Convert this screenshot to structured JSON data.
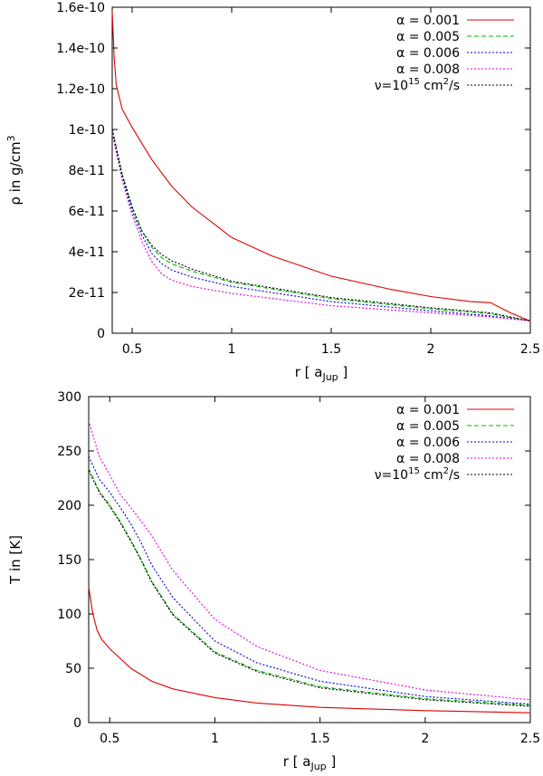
{
  "chart_data": [
    {
      "type": "line",
      "xlabel": "r [ a",
      "xlabel_sub": "Jup",
      "xlabel_tail": " ]",
      "ylabel": "ρ in g/cm",
      "ylabel_sup": "3",
      "xlim": [
        0.4,
        2.5
      ],
      "ylim": [
        0,
        1.6e-10
      ],
      "xticks": [
        0.5,
        1,
        1.5,
        2,
        2.5
      ],
      "xtick_labels": [
        "0.5",
        "1",
        "1.5",
        "2",
        "2.5"
      ],
      "yticks": [
        0,
        2e-11,
        4e-11,
        6e-11,
        8e-11,
        1e-10,
        1.2e-10,
        1.4e-10,
        1.6e-10
      ],
      "ytick_labels": [
        "0",
        "2e-11",
        "4e-11",
        "6e-11",
        "8e-11",
        "1e-10",
        "1.2e-10",
        "1.4e-10",
        "1.6e-10"
      ],
      "legend_position": "top-right",
      "series": [
        {
          "name": "α = 0.001",
          "color": "#e00000",
          "dash": "solid",
          "x": [
            0.4,
            0.41,
            0.42,
            0.45,
            0.5,
            0.6,
            0.7,
            0.8,
            1.0,
            1.2,
            1.5,
            1.8,
            2.0,
            2.2,
            2.3,
            2.4,
            2.5
          ],
          "y": [
            1.58e-10,
            1.35e-10,
            1.22e-10,
            1.1e-10,
            1.01e-10,
            8.5e-11,
            7.2e-11,
            6.2e-11,
            4.7e-11,
            3.8e-11,
            2.8e-11,
            2.15e-11,
            1.8e-11,
            1.55e-11,
            1.5e-11,
            1e-11,
            6e-12
          ]
        },
        {
          "name": "α = 0.005",
          "color": "#00b800",
          "dash": "dash",
          "x": [
            0.4,
            0.45,
            0.5,
            0.55,
            0.6,
            0.65,
            0.7,
            0.8,
            1.0,
            1.5,
            2.0,
            2.3,
            2.5
          ],
          "y": [
            1e-10,
            7.8e-11,
            6.2e-11,
            5e-11,
            4.2e-11,
            3.7e-11,
            3.4e-11,
            3.05e-11,
            2.5e-11,
            1.7e-11,
            1.2e-11,
            9.5e-12,
            6e-12
          ]
        },
        {
          "name": "α = 0.006",
          "color": "#0000cc",
          "dash": "dot",
          "x": [
            0.4,
            0.45,
            0.5,
            0.55,
            0.6,
            0.65,
            0.7,
            0.8,
            1.0,
            1.5,
            2.0,
            2.3,
            2.5
          ],
          "y": [
            1e-10,
            7.7e-11,
            6e-11,
            4.8e-11,
            3.9e-11,
            3.4e-11,
            3.1e-11,
            2.75e-11,
            2.3e-11,
            1.55e-11,
            1.1e-11,
            8.5e-12,
            6e-12
          ]
        },
        {
          "name": "α = 0.008",
          "color": "#e000e0",
          "dash": "dot",
          "x": [
            0.4,
            0.45,
            0.5,
            0.55,
            0.6,
            0.65,
            0.7,
            0.8,
            1.0,
            1.5,
            2.0,
            2.3,
            2.5
          ],
          "y": [
            9.8e-11,
            7.5e-11,
            5.8e-11,
            4.5e-11,
            3.5e-11,
            2.9e-11,
            2.6e-11,
            2.3e-11,
            1.95e-11,
            1.35e-11,
            1e-11,
            8e-12,
            6e-12
          ]
        },
        {
          "name": "ν=10",
          "name_sup": "15",
          "name_tail": " cm",
          "name_sup2": "2",
          "name_tail2": "/s",
          "color": "#000000",
          "dash": "dot",
          "x": [
            0.4,
            0.45,
            0.5,
            0.55,
            0.6,
            0.65,
            0.7,
            0.8,
            1.0,
            1.5,
            2.0,
            2.3,
            2.5
          ],
          "y": [
            1e-10,
            7.8e-11,
            6.2e-11,
            5e-11,
            4.3e-11,
            3.85e-11,
            3.55e-11,
            3.15e-11,
            2.55e-11,
            1.75e-11,
            1.25e-11,
            1e-11,
            6e-12
          ]
        }
      ]
    },
    {
      "type": "line",
      "xlabel": "r [ a",
      "xlabel_sub": "Jup",
      "xlabel_tail": " ]",
      "ylabel": "T in [K]",
      "xlim": [
        0.4,
        2.5
      ],
      "ylim": [
        0,
        300
      ],
      "xticks": [
        0.5,
        1,
        1.5,
        2,
        2.5
      ],
      "xtick_labels": [
        "0.5",
        "1",
        "1.5",
        "2",
        "2.5"
      ],
      "yticks": [
        0,
        50,
        100,
        150,
        200,
        250,
        300
      ],
      "ytick_labels": [
        "0",
        "50",
        "100",
        "150",
        "200",
        "250",
        "300"
      ],
      "legend_position": "top-right",
      "series": [
        {
          "name": "α = 0.001",
          "color": "#e00000",
          "dash": "solid",
          "x": [
            0.4,
            0.42,
            0.44,
            0.46,
            0.5,
            0.6,
            0.7,
            0.8,
            1.0,
            1.2,
            1.5,
            2.0,
            2.5
          ],
          "y": [
            125,
            100,
            85,
            77,
            68,
            50,
            38,
            31,
            23,
            18,
            14,
            11,
            9
          ]
        },
        {
          "name": "α = 0.005",
          "color": "#00b800",
          "dash": "dash",
          "x": [
            0.4,
            0.45,
            0.5,
            0.55,
            0.6,
            0.65,
            0.7,
            0.8,
            1.0,
            1.2,
            1.5,
            2.0,
            2.5
          ],
          "y": [
            234,
            213,
            200,
            185,
            168,
            150,
            130,
            100,
            65,
            48,
            33,
            22,
            16
          ]
        },
        {
          "name": "α = 0.006",
          "color": "#0000cc",
          "dash": "dot",
          "x": [
            0.4,
            0.45,
            0.5,
            0.55,
            0.6,
            0.65,
            0.7,
            0.8,
            1.0,
            1.2,
            1.5,
            2.0,
            2.5
          ],
          "y": [
            245,
            224,
            212,
            198,
            183,
            165,
            145,
            115,
            75,
            55,
            38,
            24,
            17
          ]
        },
        {
          "name": "α = 0.008",
          "color": "#e000e0",
          "dash": "dot",
          "x": [
            0.4,
            0.45,
            0.5,
            0.55,
            0.6,
            0.65,
            0.7,
            0.8,
            1.0,
            1.2,
            1.5,
            2.0,
            2.5
          ],
          "y": [
            278,
            245,
            228,
            210,
            198,
            185,
            172,
            140,
            95,
            70,
            48,
            30,
            21
          ]
        },
        {
          "name": "ν=10",
          "name_sup": "15",
          "name_tail": " cm",
          "name_sup2": "2",
          "name_tail2": "/s",
          "color": "#000000",
          "dash": "dot",
          "x": [
            0.4,
            0.45,
            0.5,
            0.55,
            0.6,
            0.65,
            0.7,
            0.8,
            1.0,
            1.2,
            1.5,
            2.0,
            2.5
          ],
          "y": [
            232,
            212,
            199,
            184,
            167,
            149,
            129,
            99,
            64,
            47,
            32,
            21,
            15
          ]
        }
      ]
    }
  ]
}
